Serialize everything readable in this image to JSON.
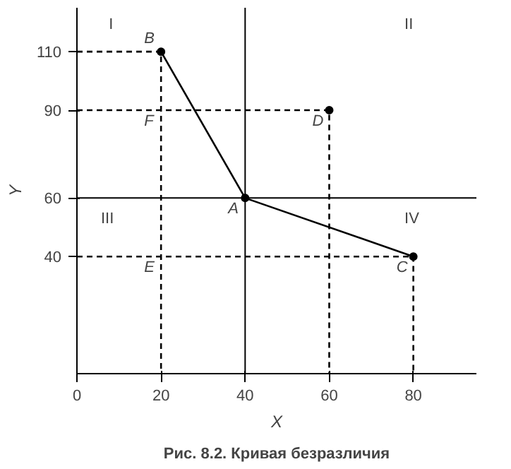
{
  "chart_data": {
    "type": "line",
    "title": "Рис. 8.2. Кривая безразличия",
    "xlabel": "X",
    "ylabel": "Y",
    "xlim": [
      0,
      95
    ],
    "ylim": [
      0,
      125
    ],
    "xticks": [
      0,
      20,
      40,
      60,
      80
    ],
    "yticks": [
      40,
      60,
      90,
      110
    ],
    "grid": false,
    "series": [
      {
        "x": [
          20,
          40,
          80
        ],
        "values": [
          110,
          60,
          40
        ],
        "color": "#000000",
        "line_style": "solid"
      },
      {
        "x": [
          0,
          20,
          20
        ],
        "values": [
          110,
          110,
          0
        ],
        "color": "#000000",
        "line_style": "dashed"
      },
      {
        "x": [
          0,
          60,
          60
        ],
        "values": [
          90,
          90,
          0
        ],
        "color": "#000000",
        "line_style": "dashed"
      },
      {
        "x": [
          0,
          80,
          80
        ],
        "values": [
          40,
          40,
          0
        ],
        "color": "#000000",
        "line_style": "dashed"
      },
      {
        "type": "scatter",
        "x": [
          20,
          40,
          80,
          60
        ],
        "values": [
          110,
          60,
          40,
          90
        ],
        "color": "#000000",
        "marker": "circle"
      }
    ],
    "ref_lines": [
      {
        "axis": "x",
        "value": 40,
        "color": "#000000",
        "line_style": "solid"
      },
      {
        "axis": "y",
        "value": 60,
        "color": "#000000",
        "line_style": "solid"
      }
    ],
    "annotations": [
      {
        "text": "B",
        "x": 20,
        "y": 110
      },
      {
        "text": "A",
        "x": 40,
        "y": 60
      },
      {
        "text": "C",
        "x": 80,
        "y": 40
      },
      {
        "text": "D",
        "x": 60,
        "y": 90
      },
      {
        "text": "F",
        "x": 20,
        "y": 90
      },
      {
        "text": "E",
        "x": 20,
        "y": 40
      },
      "I",
      "II",
      "III",
      "IV"
    ]
  }
}
